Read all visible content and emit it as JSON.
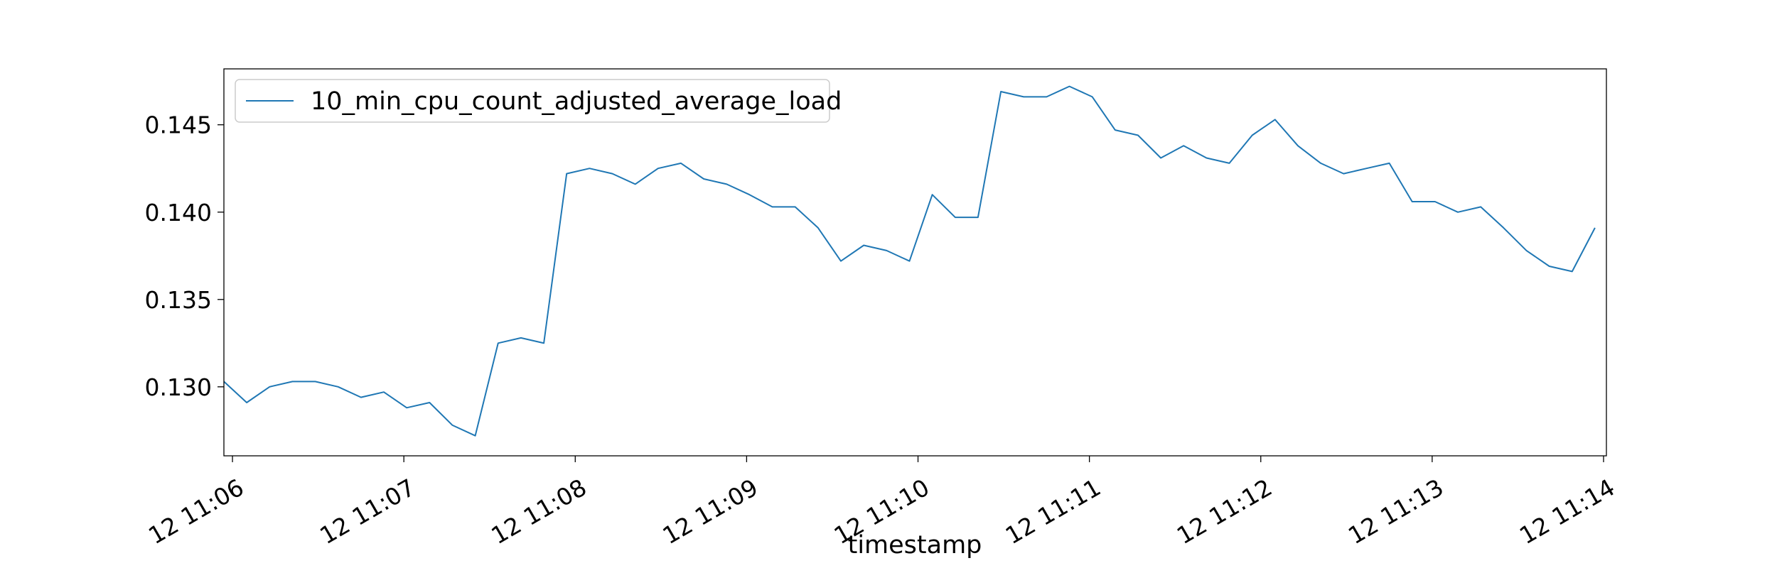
{
  "chart_data": {
    "type": "line",
    "title": "",
    "xlabel": "timestamp",
    "ylabel": "",
    "x_start": "2024-01-12 11:05:57",
    "x_step_seconds": 8,
    "xlim": [
      "2024-01-12 11:05:57",
      "2024-01-12 11:14:01"
    ],
    "ylim": [
      0.12605,
      0.1482
    ],
    "yticks": [
      0.13,
      0.135,
      0.14,
      0.145
    ],
    "ytick_labels": [
      "0.130",
      "0.135",
      "0.140",
      "0.145"
    ],
    "xticks": [
      "2024-01-12 11:06:00",
      "2024-01-12 11:07:00",
      "2024-01-12 11:08:00",
      "2024-01-12 11:09:00",
      "2024-01-12 11:10:00",
      "2024-01-12 11:11:00",
      "2024-01-12 11:12:00",
      "2024-01-12 11:13:00",
      "2024-01-12 11:14:00"
    ],
    "xtick_labels": [
      "12 11:06",
      "12 11:07",
      "12 11:08",
      "12 11:09",
      "12 11:10",
      "12 11:11",
      "12 11:12",
      "12 11:13",
      "12 11:14"
    ],
    "grid": false,
    "legend_position": "top-left",
    "series": [
      {
        "name": "10_min_cpu_count_adjusted_average_load",
        "color": "#1f77b4",
        "values": [
          0.1303,
          0.1291,
          0.13,
          0.1303,
          0.1303,
          0.13,
          0.1294,
          0.1297,
          0.1288,
          0.1291,
          0.1278,
          0.1272,
          0.1325,
          0.1328,
          0.1325,
          0.1422,
          0.1425,
          0.1422,
          0.1416,
          0.1425,
          0.1428,
          0.1419,
          0.1416,
          0.141,
          0.1403,
          0.1403,
          0.1391,
          0.1372,
          0.1381,
          0.1378,
          0.1372,
          0.141,
          0.1397,
          0.1397,
          0.1469,
          0.1466,
          0.1466,
          0.1472,
          0.1466,
          0.1447,
          0.1444,
          0.1431,
          0.1438,
          0.1431,
          0.1428,
          0.1444,
          0.1453,
          0.1438,
          0.1428,
          0.1422,
          0.1425,
          0.1428,
          0.1406,
          0.1406,
          0.14,
          0.1403,
          0.1391,
          0.1378,
          0.1369,
          0.1366,
          0.1391
        ]
      }
    ]
  }
}
